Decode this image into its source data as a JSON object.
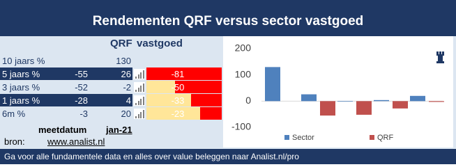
{
  "title": "Rendementen QRF versus sector vastgoed",
  "table": {
    "headers": [
      "QRF",
      "vastgoed"
    ],
    "rows": [
      {
        "label": "10 jaars %",
        "qrf": null,
        "sector": 130,
        "diff": null
      },
      {
        "label": "5 jaars %",
        "qrf": -55,
        "sector": 26,
        "diff": -81
      },
      {
        "label": "3 jaars %",
        "qrf": -52,
        "sector": -2,
        "diff": -50
      },
      {
        "label": "1 jaars %",
        "qrf": -28,
        "sector": 4,
        "diff": -33
      },
      {
        "label": "6m %",
        "qrf": -3,
        "sector": 20,
        "diff": -23
      }
    ]
  },
  "date": {
    "label": "meetdatum",
    "value": "jan-21"
  },
  "source": {
    "label": "bron:",
    "value": "www.analist.nl"
  },
  "footer": "Ga voor alle fundamentele data en alles over value beleggen naar Analist.nl/pro",
  "chart_data": {
    "type": "bar",
    "categories": [
      null,
      null,
      null,
      null,
      null
    ],
    "series": [
      {
        "name": "Sector",
        "color": "#4f81bd",
        "values": [
          130,
          26,
          -2,
          4,
          20
        ]
      },
      {
        "name": "QRF",
        "color": "#c0504d",
        "values": [
          null,
          -55,
          -52,
          -28,
          -3
        ]
      }
    ],
    "ylim": [
      -100,
      200
    ],
    "yticks": [
      -100,
      0,
      100,
      200
    ],
    "legend": "bottom"
  }
}
